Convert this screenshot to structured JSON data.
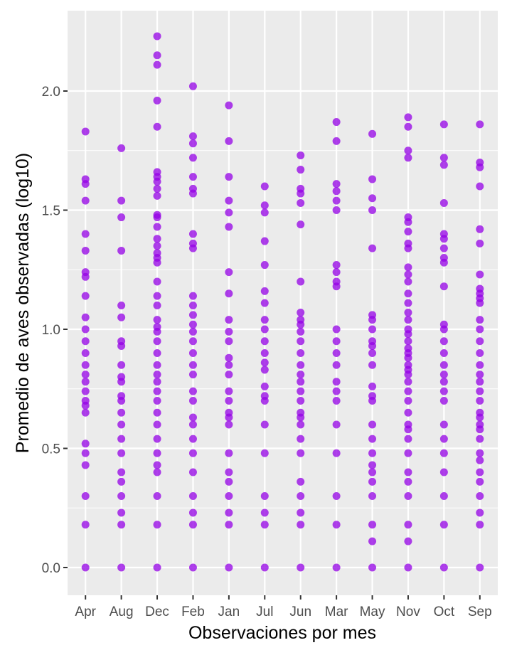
{
  "chart_data": {
    "type": "scatter",
    "xlabel": "Observaciones por mes",
    "ylabel": "Promedio de aves observadas (log10)",
    "categories": [
      "Apr",
      "Aug",
      "Dec",
      "Feb",
      "Jan",
      "Jul",
      "Jun",
      "Mar",
      "May",
      "Nov",
      "Oct",
      "Sep"
    ],
    "ylim": [
      -0.11,
      2.33
    ],
    "yticks": [
      0.0,
      0.5,
      1.0,
      1.5,
      2.0
    ],
    "ytick_labels": [
      "0.0",
      "0.5",
      "1.0",
      "1.5",
      "2.0"
    ],
    "grid": true,
    "point_color": "#9400E6",
    "panel_color": "#EBEBEB",
    "points": {
      "Apr": [
        0,
        0.18,
        0.3,
        0.43,
        0.48,
        0.52,
        0.65,
        0.68,
        0.7,
        0.74,
        0.78,
        0.81,
        0.85,
        0.9,
        0.95,
        1.0,
        1.05,
        1.14,
        1.22,
        1.24,
        1.33,
        1.4,
        1.54,
        1.61,
        1.63,
        1.83
      ],
      "Aug": [
        0,
        0.18,
        0.23,
        0.3,
        0.36,
        0.4,
        0.48,
        0.54,
        0.6,
        0.65,
        0.7,
        0.72,
        0.78,
        0.8,
        0.85,
        0.93,
        0.95,
        1.05,
        1.1,
        1.33,
        1.47,
        1.54,
        1.76
      ],
      "Dec": [
        0,
        0.18,
        0.3,
        0.4,
        0.43,
        0.48,
        0.54,
        0.6,
        0.65,
        0.7,
        0.74,
        0.78,
        0.81,
        0.85,
        0.9,
        0.95,
        0.99,
        1.01,
        1.04,
        1.1,
        1.14,
        1.2,
        1.28,
        1.3,
        1.32,
        1.35,
        1.38,
        1.43,
        1.47,
        1.48,
        1.56,
        1.59,
        1.62,
        1.64,
        1.66,
        1.85,
        1.96,
        2.11,
        2.15,
        2.23
      ],
      "Feb": [
        0,
        0.18,
        0.23,
        0.3,
        0.4,
        0.48,
        0.54,
        0.6,
        0.63,
        0.7,
        0.74,
        0.81,
        0.85,
        0.9,
        0.95,
        0.99,
        1.02,
        1.06,
        1.1,
        1.14,
        1.34,
        1.36,
        1.4,
        1.57,
        1.59,
        1.64,
        1.72,
        1.78,
        1.81,
        2.02
      ],
      "Jan": [
        0,
        0.18,
        0.23,
        0.3,
        0.36,
        0.4,
        0.48,
        0.6,
        0.63,
        0.65,
        0.7,
        0.74,
        0.81,
        0.85,
        0.88,
        0.95,
        0.99,
        1.04,
        1.15,
        1.24,
        1.43,
        1.49,
        1.54,
        1.64,
        1.79,
        1.94
      ],
      "Jul": [
        0,
        0.18,
        0.23,
        0.3,
        0.48,
        0.6,
        0.7,
        0.72,
        0.76,
        0.83,
        0.86,
        0.9,
        0.95,
        1.0,
        1.04,
        1.11,
        1.16,
        1.27,
        1.37,
        1.49,
        1.52,
        1.6
      ],
      "Jun": [
        0,
        0.18,
        0.23,
        0.3,
        0.36,
        0.48,
        0.54,
        0.6,
        0.63,
        0.65,
        0.7,
        0.74,
        0.78,
        0.81,
        0.85,
        0.9,
        0.95,
        0.99,
        1.02,
        1.04,
        1.07,
        1.2,
        1.44,
        1.53,
        1.57,
        1.59,
        1.67,
        1.73
      ],
      "Mar": [
        0,
        0.18,
        0.3,
        0.48,
        0.6,
        0.7,
        0.74,
        0.78,
        0.85,
        0.9,
        0.95,
        1.0,
        1.18,
        1.2,
        1.24,
        1.27,
        1.5,
        1.54,
        1.58,
        1.61,
        1.79,
        1.87
      ],
      "May": [
        0,
        0.11,
        0.18,
        0.3,
        0.36,
        0.4,
        0.43,
        0.48,
        0.54,
        0.6,
        0.7,
        0.72,
        0.76,
        0.85,
        0.9,
        0.93,
        0.95,
        1.0,
        1.04,
        1.06,
        1.34,
        1.5,
        1.55,
        1.63,
        1.82
      ],
      "Nov": [
        0,
        0.11,
        0.18,
        0.3,
        0.36,
        0.4,
        0.48,
        0.54,
        0.58,
        0.6,
        0.65,
        0.7,
        0.74,
        0.78,
        0.81,
        0.83,
        0.85,
        0.88,
        0.9,
        0.92,
        0.95,
        0.98,
        1.0,
        1.04,
        1.07,
        1.11,
        1.15,
        1.2,
        1.23,
        1.26,
        1.34,
        1.36,
        1.41,
        1.45,
        1.47,
        1.72,
        1.75,
        1.85,
        1.89
      ],
      "Oct": [
        0,
        0.18,
        0.3,
        0.4,
        0.48,
        0.54,
        0.6,
        0.7,
        0.74,
        0.78,
        0.81,
        0.85,
        0.9,
        0.95,
        1.0,
        1.02,
        1.18,
        1.28,
        1.3,
        1.34,
        1.38,
        1.4,
        1.53,
        1.69,
        1.72,
        1.86
      ],
      "Sep": [
        0,
        0.18,
        0.23,
        0.3,
        0.36,
        0.4,
        0.45,
        0.48,
        0.54,
        0.58,
        0.6,
        0.63,
        0.65,
        0.7,
        0.74,
        0.78,
        0.81,
        0.85,
        0.9,
        0.95,
        1.0,
        1.04,
        1.11,
        1.13,
        1.15,
        1.17,
        1.23,
        1.36,
        1.42,
        1.6,
        1.68,
        1.7,
        1.86
      ]
    }
  }
}
